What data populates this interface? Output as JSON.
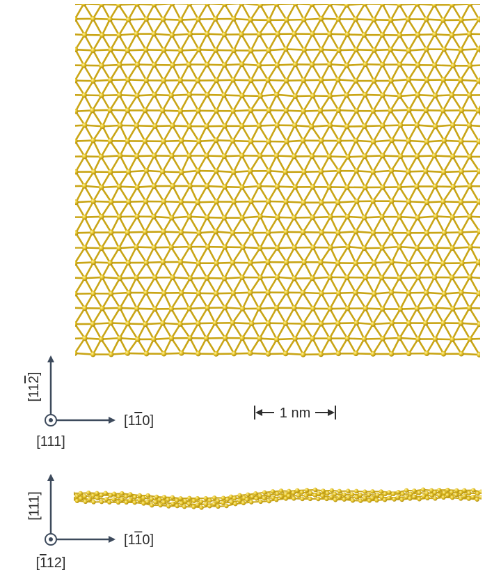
{
  "top_view": {
    "axis_vertical": {
      "open": "[11",
      "bar_digit": "2",
      "close": "]"
    },
    "axis_horizontal": {
      "open": "[1",
      "bar_digit": "1",
      "close": "0]"
    },
    "axis_out_of_plane": "[111]"
  },
  "scale_bar": {
    "label": "1 nm"
  },
  "side_view": {
    "axis_vertical": "[111]",
    "axis_horizontal": {
      "open": "[1",
      "bar_digit": "1",
      "close": "0]"
    },
    "axis_out_of_plane": {
      "open": "[",
      "bar_digit": "1",
      "close": "12]"
    }
  },
  "colors": {
    "atom": "#e2c01e",
    "bond": "#c9a516",
    "axis": "#3d4a5c",
    "text": "#2e2e2e"
  }
}
